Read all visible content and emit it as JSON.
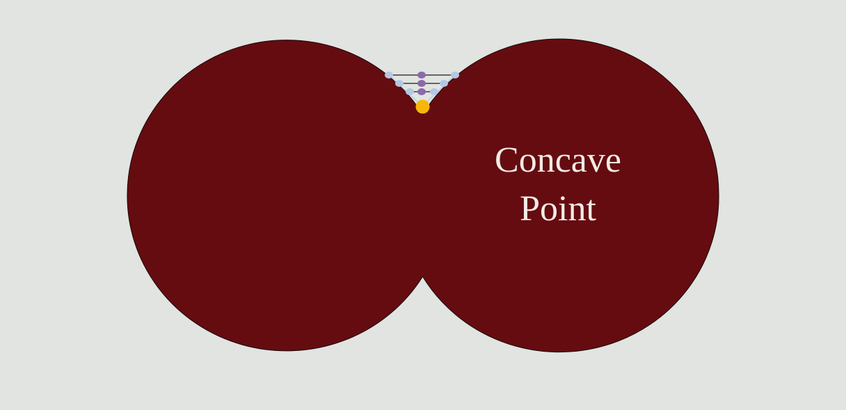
{
  "label": {
    "line1": "Concave",
    "line2": "Point"
  },
  "colors": {
    "background": "#e1e4e0",
    "shape_fill": "#650c11",
    "shape_stroke": "#1a0506",
    "concave_point": "#f7b70a",
    "sample_points_outer": "#b4c7e3",
    "sample_points_mid": "#8a6aaa",
    "text": "#f3ebe6"
  }
}
